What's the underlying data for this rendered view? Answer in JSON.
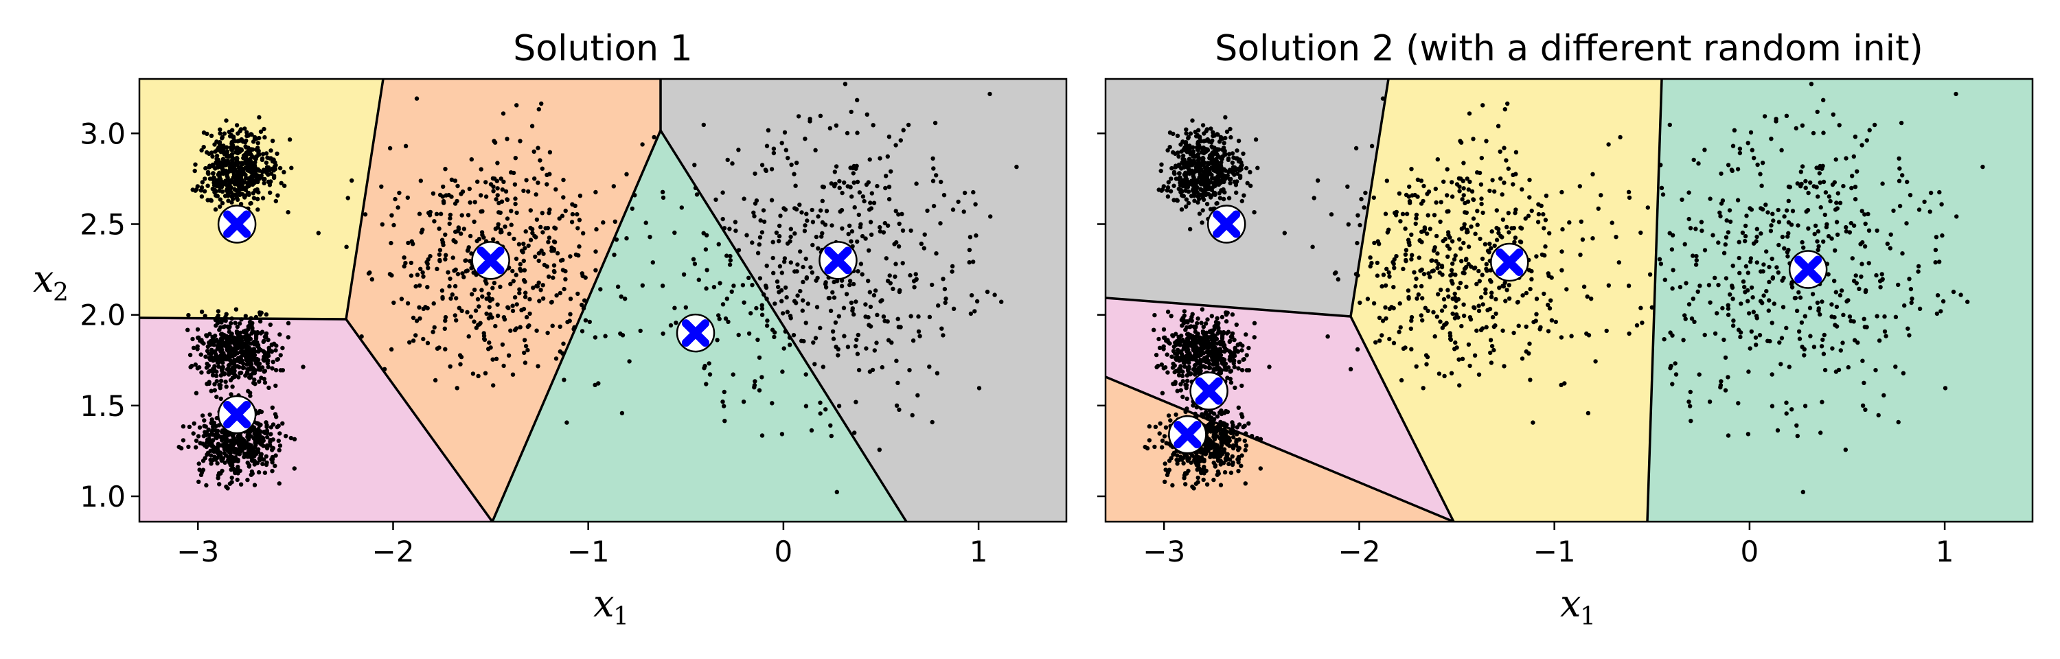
{
  "figure": {
    "panels": [
      {
        "title": "Solution 1",
        "xlabel": "x",
        "xlabel_sub": "1",
        "ylabel": "x",
        "ylabel_sub": "2"
      },
      {
        "title": "Solution 2 (with a different random init)",
        "xlabel": "x",
        "xlabel_sub": "1",
        "ylabel": "",
        "ylabel_sub": ""
      }
    ]
  },
  "chart_data": [
    {
      "type": "scatter",
      "title": "Solution 1",
      "xlabel": "x1",
      "ylabel": "x2",
      "xlim": [
        -3.3,
        1.45
      ],
      "ylim": [
        0.86,
        3.3
      ],
      "xticks": [
        "−3",
        "−2",
        "−1",
        "0",
        "1"
      ],
      "xtick_values": [
        -3,
        -2,
        -1,
        0,
        1
      ],
      "yticks": [
        "1.0",
        "1.5",
        "2.0",
        "2.5",
        "3.0"
      ],
      "ytick_values": [
        1.0,
        1.5,
        2.0,
        2.5,
        3.0
      ],
      "grid": false,
      "region_colors": [
        "#fdf0a9",
        "#fdcca8",
        "#cbcbcb",
        "#b3e2cd",
        "#f3cae4"
      ],
      "centroid_color": "#0000ff",
      "clusters": [
        {
          "center": [
            -2.8,
            2.8
          ],
          "std": 0.1,
          "n": 500
        },
        {
          "center": [
            -2.8,
            1.8
          ],
          "std": 0.1,
          "n": 500
        },
        {
          "center": [
            -2.8,
            1.3
          ],
          "std": 0.1,
          "n": 500
        },
        {
          "center": [
            -1.47,
            2.3
          ],
          "std": 0.3,
          "n": 500
        },
        {
          "center": [
            0.2,
            2.3
          ],
          "std": 0.4,
          "n": 500
        }
      ],
      "centroids": [
        [
          -2.8,
          2.5
        ],
        [
          -2.8,
          1.45
        ],
        [
          -1.5,
          2.3
        ],
        [
          -0.45,
          1.9
        ],
        [
          0.28,
          2.3
        ]
      ]
    },
    {
      "type": "scatter",
      "title": "Solution 2 (with a different random init)",
      "xlabel": "x1",
      "ylabel": "",
      "xlim": [
        -3.3,
        1.45
      ],
      "ylim": [
        0.86,
        3.3
      ],
      "xticks": [
        "−3",
        "−2",
        "−1",
        "0",
        "1"
      ],
      "xtick_values": [
        -3,
        -2,
        -1,
        0,
        1
      ],
      "yticks": [],
      "grid": false,
      "region_colors": [
        "#cbcbcb",
        "#fdf0a9",
        "#b3e2cd",
        "#f3cae4",
        "#fdcca8"
      ],
      "centroid_color": "#0000ff",
      "clusters": [
        {
          "center": [
            -2.8,
            2.8
          ],
          "std": 0.1,
          "n": 500
        },
        {
          "center": [
            -2.8,
            1.8
          ],
          "std": 0.1,
          "n": 500
        },
        {
          "center": [
            -2.8,
            1.3
          ],
          "std": 0.1,
          "n": 500
        },
        {
          "center": [
            -1.47,
            2.3
          ],
          "std": 0.3,
          "n": 500
        },
        {
          "center": [
            0.2,
            2.3
          ],
          "std": 0.4,
          "n": 500
        }
      ],
      "centroids": [
        [
          -2.68,
          2.5
        ],
        [
          -2.77,
          1.58
        ],
        [
          -2.88,
          1.34
        ],
        [
          -1.23,
          2.29
        ],
        [
          0.3,
          2.25
        ]
      ]
    }
  ]
}
